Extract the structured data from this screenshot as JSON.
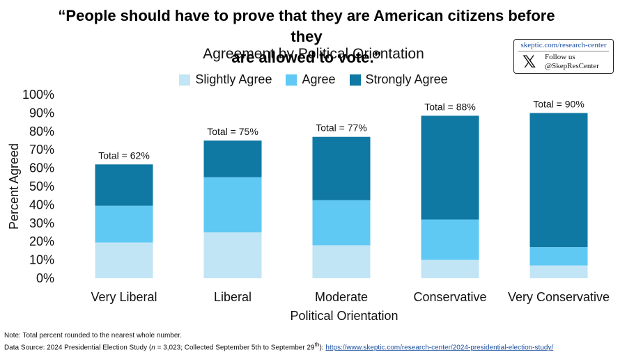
{
  "title_line1": "“People should have to prove that they are American citizens before they",
  "title_line2": "are allowed to vote.”",
  "subtitle": "Agreement by Political Orientation",
  "badge": {
    "url": "skeptic.com/research-center",
    "follow": "Follow us",
    "handle": "@SkepResCenter",
    "icon": "x-logo-icon"
  },
  "footer": {
    "note": "Note: Total percent rounded to the nearest whole number.",
    "source_prefix": "Data Source: 2024 Presidential Election Study (",
    "n_label": "n",
    "source_mid": " = 3,023; Collected September 5th to September 29",
    "sup": "th",
    "source_suffix": "): ",
    "link": "https://www.skeptic.com/research-center/2024-presidential-election-study/"
  },
  "chart_data": {
    "type": "bar",
    "stacked": true,
    "categories": [
      "Very Liberal",
      "Liberal",
      "Moderate",
      "Conservative",
      "Very Conservative"
    ],
    "series": [
      {
        "name": "Slightly Agree",
        "color": "#c2e5f5",
        "values": [
          19.5,
          25,
          18,
          10,
          7
        ]
      },
      {
        "name": "Agree",
        "color": "#5fc8f3",
        "values": [
          20,
          30,
          24.5,
          22,
          10
        ]
      },
      {
        "name": "Strongly Agree",
        "color": "#0f78a3",
        "values": [
          22.5,
          20,
          34.5,
          56.5,
          73
        ]
      }
    ],
    "totals": [
      "Total = 62%",
      "Total = 75%",
      "Total = 77%",
      "Total = 88%",
      "Total = 90%"
    ],
    "xlabel": "Political Orientation",
    "ylabel": "Percent Agreed",
    "ylim": [
      0,
      100
    ],
    "yticks": [
      "0%",
      "10%",
      "20%",
      "30%",
      "40%",
      "50%",
      "60%",
      "70%",
      "80%",
      "90%",
      "100%"
    ],
    "grid": false,
    "legend_position": "top"
  }
}
